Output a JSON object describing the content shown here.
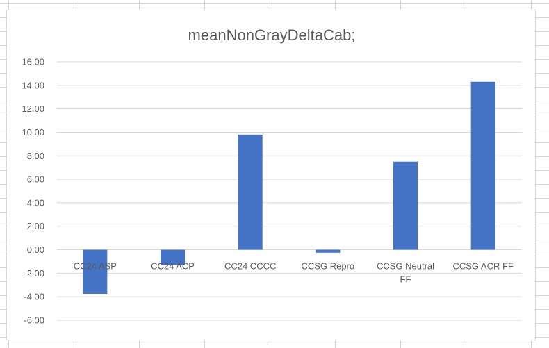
{
  "chart_data": {
    "type": "bar",
    "title": "meanNonGrayDeltaCab;",
    "categories": [
      [
        "CC24 ASP"
      ],
      [
        "CC24 ACP"
      ],
      [
        "CC24 CCCC"
      ],
      [
        "CCSG Repro"
      ],
      [
        "CCSG Neutral",
        "FF"
      ],
      [
        "CCSG ACR FF"
      ]
    ],
    "values": [
      -3.75,
      -1.3,
      9.8,
      -0.25,
      7.5,
      14.3
    ],
    "ylim": [
      -6,
      16
    ],
    "yticks": [
      "16.00",
      "14.00",
      "12.00",
      "10.00",
      "8.00",
      "6.00",
      "4.00",
      "2.00",
      "0.00",
      "-2.00",
      "-4.00",
      "-6.00"
    ],
    "grid": true,
    "xlabel": "",
    "ylabel": "",
    "colors": {
      "bar": "#4472C4",
      "grid": "#d9d9d9",
      "text": "#595959"
    }
  }
}
